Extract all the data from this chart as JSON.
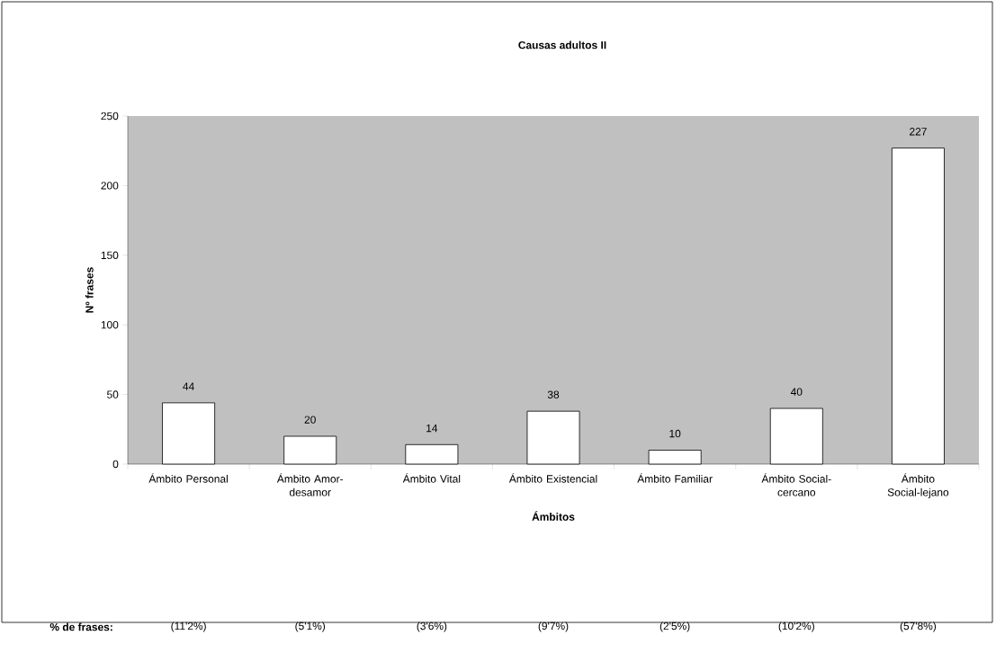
{
  "chart_data": {
    "type": "bar",
    "title": "Causas adultos II",
    "xlabel": "Ámbitos",
    "ylabel": "Nº frases",
    "categories": [
      "Ámbito Personal",
      "Ámbito Amor-desamor",
      "Ámbito Vital",
      "Ámbito Existencial",
      "Ámbito Familiar",
      "Ámbito Social-cercano",
      "Ámbito Social-lejano"
    ],
    "values": [
      44,
      20,
      14,
      38,
      10,
      40,
      227
    ],
    "color": "#ffffff",
    "ylim": [
      0,
      250
    ],
    "yticks": [
      0,
      50,
      100,
      150,
      200,
      250
    ],
    "data_labels": true,
    "annotations": [
      "% de frases:",
      "(11'2%)",
      "(5'1%)",
      "(3'6%)",
      "(9'7%)",
      "(2'5%)",
      "(10'2%)",
      "(57'8%)"
    ]
  }
}
